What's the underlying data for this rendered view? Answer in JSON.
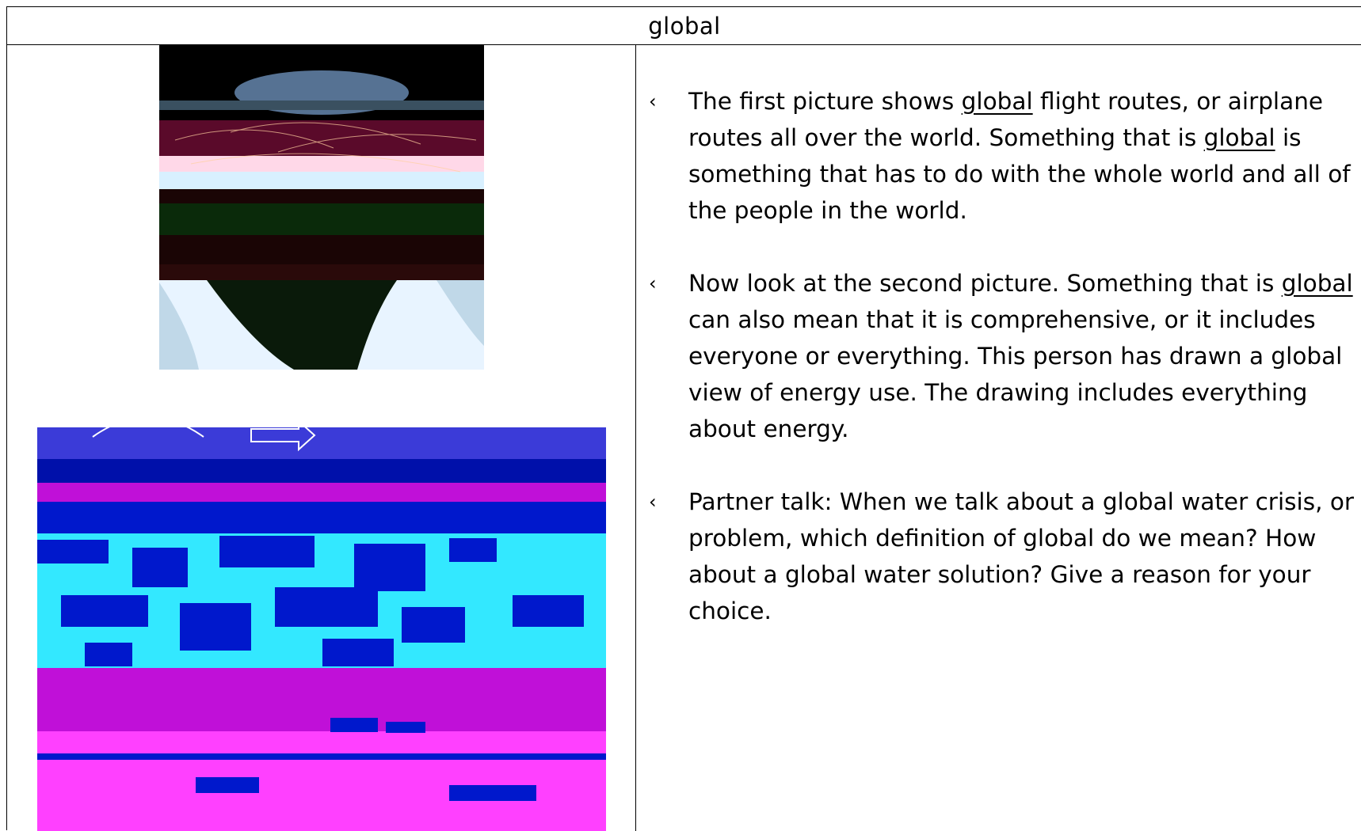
{
  "table": {
    "title": "global"
  },
  "images": {
    "earth": {
      "icon": "earth-flight-routes-photo",
      "colors": [
        "#000000",
        "#0a1a4a",
        "#5a0a2a",
        "#8fb8d8",
        "#ffffff"
      ]
    },
    "energy": {
      "icon": "energy-use-drawing",
      "colors": [
        "#0018cc",
        "#33e8ff",
        "#c010d8",
        "#ffffff"
      ]
    }
  },
  "bullet_marker": "‹",
  "bullets": [
    {
      "p1": "The first picture shows ",
      "u1": "global",
      "p2": " flight routes, or airplane routes all over the world. Something that is ",
      "u2": "global",
      "p3": " is something that has to do with the whole world and all of the people in the world."
    },
    {
      "p1": "Now look at the second picture. Something that is ",
      "u1": "global",
      "p2": " can also mean that it is comprehensive, or it includes everyone or everything. This person has drawn a global view of energy use. The drawing includes everything about energy."
    },
    {
      "p1": "Partner talk: When we talk about a global water crisis, or problem, which definition of global do we mean? How about a global water solution? Give a reason for your choice."
    }
  ]
}
